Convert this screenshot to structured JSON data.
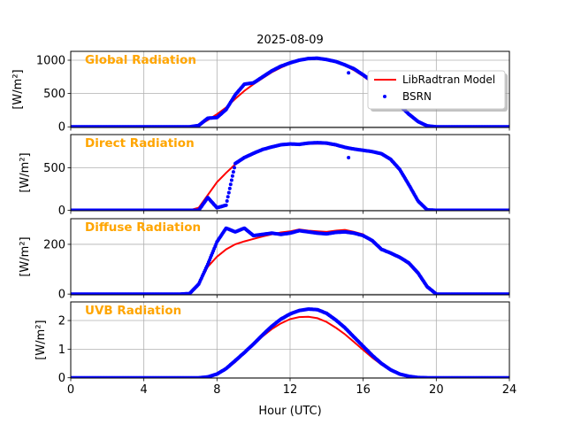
{
  "chart_data": {
    "type": "line",
    "title": "2025-08-09",
    "xlabel": "Hour (UTC)",
    "xlim": [
      0,
      24
    ],
    "xticks": [
      0,
      4,
      8,
      12,
      16,
      20,
      24
    ],
    "grid": true,
    "legend": {
      "placement": "right, top panel",
      "entries": [
        "LibRadtran Model",
        "BSRN"
      ]
    },
    "colors": {
      "model": "#FF0000",
      "bsrn": "#0000FF",
      "panel_title": "#FFA500"
    },
    "x": [
      0,
      6,
      6.5,
      7,
      7.5,
      8,
      8.5,
      9,
      9.5,
      10,
      10.5,
      11,
      11.5,
      12,
      12.5,
      13,
      13.5,
      14,
      14.5,
      15,
      15.5,
      16,
      16.5,
      17,
      17.5,
      18,
      18.5,
      19,
      19.5,
      20,
      24
    ],
    "panels": [
      {
        "title": "Global Radiation",
        "ylabel": "[W/m²]",
        "ylim": [
          -10,
          1133
        ],
        "yticks": [
          0,
          500,
          1000
        ],
        "series": [
          {
            "name": "LibRadtran Model",
            "style": "line",
            "values": [
              0,
              0,
              0,
              20,
              100,
              190,
              290,
              420,
              540,
              640,
              730,
              820,
              890,
              950,
              995,
              1020,
              1025,
              1010,
              975,
              920,
              850,
              760,
              660,
              550,
              430,
              310,
              190,
              90,
              25,
              0,
              0
            ]
          },
          {
            "name": "BSRN",
            "style": "dots",
            "values": [
              0,
              0,
              0,
              20,
              130,
              140,
              260,
              480,
              640,
              660,
              750,
              840,
              910,
              960,
              1000,
              1025,
              1030,
              1010,
              980,
              930,
              870,
              780,
              680,
              570,
              440,
              320,
              190,
              80,
              15,
              0,
              0
            ],
            "outliers": [
              [
                15.2,
                810
              ]
            ]
          }
        ]
      },
      {
        "title": "Direct Radiation",
        "ylabel": "[W/m²]",
        "ylim": [
          -5,
          890
        ],
        "yticks": [
          0,
          500
        ],
        "series": [
          {
            "name": "LibRadtran Model",
            "style": "line",
            "values": [
              0,
              0,
              0,
              30,
              180,
              330,
              440,
              540,
              610,
              660,
              710,
              740,
              765,
              775,
              775,
              780,
              785,
              780,
              760,
              735,
              715,
              700,
              690,
              660,
              590,
              470,
              300,
              120,
              10,
              0,
              0
            ]
          },
          {
            "name": "BSRN",
            "style": "dots",
            "values": [
              0,
              0,
              0,
              0,
              150,
              30,
              60,
              550,
              620,
              670,
              715,
              745,
              770,
              780,
              775,
              790,
              795,
              790,
              770,
              740,
              720,
              705,
              690,
              665,
              600,
              480,
              300,
              110,
              5,
              0,
              0
            ],
            "outliers": [
              [
                15.2,
                620
              ]
            ]
          }
        ]
      },
      {
        "title": "Diffuse Radiation",
        "ylabel": "[W/m²]",
        "ylim": [
          -3,
          303
        ],
        "yticks": [
          0,
          200
        ],
        "series": [
          {
            "name": "LibRadtran Model",
            "style": "line",
            "values": [
              0,
              0,
              0,
              40,
              110,
              150,
              180,
              200,
              212,
              222,
              232,
              240,
              248,
              252,
              260,
              255,
              252,
              250,
              255,
              258,
              250,
              240,
              210,
              180,
              165,
              145,
              120,
              80,
              25,
              0,
              0
            ]
          },
          {
            "name": "BSRN",
            "style": "dots",
            "values": [
              0,
              0,
              2,
              40,
              120,
              210,
              265,
              250,
              265,
              235,
              240,
              245,
              240,
              245,
              255,
              250,
              245,
              242,
              248,
              250,
              245,
              235,
              215,
              180,
              165,
              148,
              125,
              85,
              30,
              0,
              0
            ],
            "outliers": []
          }
        ]
      },
      {
        "title": "UVB Radiation",
        "ylabel": "[W/m²]",
        "ylim": [
          -0.01,
          2.65
        ],
        "yticks": [
          0,
          1,
          2
        ],
        "series": [
          {
            "name": "LibRadtran Model",
            "style": "line",
            "values": [
              0,
              0,
              0,
              0,
              0.03,
              0.12,
              0.3,
              0.55,
              0.85,
              1.15,
              1.45,
              1.7,
              1.9,
              2.05,
              2.12,
              2.13,
              2.08,
              1.95,
              1.75,
              1.52,
              1.25,
              0.97,
              0.7,
              0.46,
              0.27,
              0.13,
              0.05,
              0.01,
              0,
              0,
              0
            ]
          },
          {
            "name": "BSRN",
            "style": "dots",
            "values": [
              0,
              0,
              0,
              0,
              0.03,
              0.13,
              0.32,
              0.6,
              0.88,
              1.18,
              1.5,
              1.8,
              2.05,
              2.23,
              2.35,
              2.4,
              2.38,
              2.25,
              2.02,
              1.75,
              1.42,
              1.1,
              0.78,
              0.5,
              0.28,
              0.13,
              0.05,
              0.01,
              0,
              0,
              0
            ],
            "outliers": []
          }
        ]
      }
    ]
  }
}
